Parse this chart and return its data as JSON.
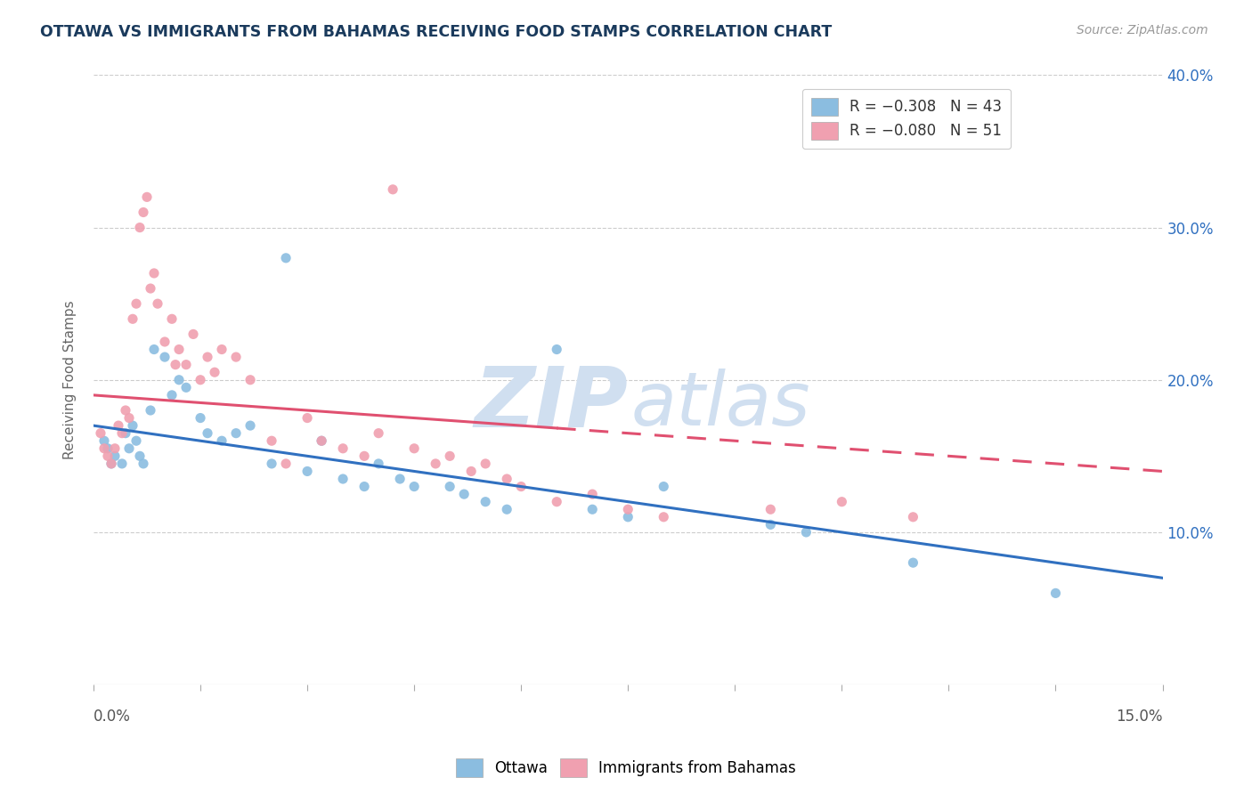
{
  "title": "OTTAWA VS IMMIGRANTS FROM BAHAMAS RECEIVING FOOD STAMPS CORRELATION CHART",
  "source": "Source: ZipAtlas.com",
  "ylabel": "Receiving Food Stamps",
  "xmin": 0.0,
  "xmax": 15.0,
  "ymin": 0.0,
  "ymax": 40.0,
  "ytick_vals": [
    10.0,
    20.0,
    30.0,
    40.0
  ],
  "ytick_labels": [
    "10.0%",
    "20.0%",
    "30.0%",
    "40.0%"
  ],
  "ottawa_color": "#8bbde0",
  "bahamas_color": "#f0a0b0",
  "ottawa_line_color": "#3070c0",
  "bahamas_line_color": "#e05070",
  "watermark_color": "#d0dff0",
  "ottawa_line_y0": 17.0,
  "ottawa_line_y1": 7.0,
  "bahamas_line_y0": 19.0,
  "bahamas_line_y1": 14.0,
  "bahamas_solid_x1": 6.5,
  "ottawa_scatter": [
    [
      0.15,
      16.0
    ],
    [
      0.2,
      15.5
    ],
    [
      0.25,
      14.5
    ],
    [
      0.3,
      15.0
    ],
    [
      0.4,
      14.5
    ],
    [
      0.45,
      16.5
    ],
    [
      0.5,
      15.5
    ],
    [
      0.55,
      17.0
    ],
    [
      0.6,
      16.0
    ],
    [
      0.65,
      15.0
    ],
    [
      0.7,
      14.5
    ],
    [
      0.8,
      18.0
    ],
    [
      0.85,
      22.0
    ],
    [
      1.0,
      21.5
    ],
    [
      1.1,
      19.0
    ],
    [
      1.2,
      20.0
    ],
    [
      1.3,
      19.5
    ],
    [
      1.5,
      17.5
    ],
    [
      1.6,
      16.5
    ],
    [
      1.8,
      16.0
    ],
    [
      2.0,
      16.5
    ],
    [
      2.2,
      17.0
    ],
    [
      2.5,
      14.5
    ],
    [
      2.7,
      28.0
    ],
    [
      3.0,
      14.0
    ],
    [
      3.2,
      16.0
    ],
    [
      3.5,
      13.5
    ],
    [
      3.8,
      13.0
    ],
    [
      4.0,
      14.5
    ],
    [
      4.3,
      13.5
    ],
    [
      4.5,
      13.0
    ],
    [
      5.0,
      13.0
    ],
    [
      5.2,
      12.5
    ],
    [
      5.5,
      12.0
    ],
    [
      5.8,
      11.5
    ],
    [
      6.5,
      22.0
    ],
    [
      7.0,
      11.5
    ],
    [
      7.5,
      11.0
    ],
    [
      8.0,
      13.0
    ],
    [
      9.5,
      10.5
    ],
    [
      10.0,
      10.0
    ],
    [
      11.5,
      8.0
    ],
    [
      13.5,
      6.0
    ]
  ],
  "bahamas_scatter": [
    [
      0.1,
      16.5
    ],
    [
      0.15,
      15.5
    ],
    [
      0.2,
      15.0
    ],
    [
      0.25,
      14.5
    ],
    [
      0.3,
      15.5
    ],
    [
      0.35,
      17.0
    ],
    [
      0.4,
      16.5
    ],
    [
      0.45,
      18.0
    ],
    [
      0.5,
      17.5
    ],
    [
      0.55,
      24.0
    ],
    [
      0.6,
      25.0
    ],
    [
      0.65,
      30.0
    ],
    [
      0.7,
      31.0
    ],
    [
      0.75,
      32.0
    ],
    [
      0.8,
      26.0
    ],
    [
      0.85,
      27.0
    ],
    [
      0.9,
      25.0
    ],
    [
      1.0,
      22.5
    ],
    [
      1.1,
      24.0
    ],
    [
      1.15,
      21.0
    ],
    [
      1.2,
      22.0
    ],
    [
      1.3,
      21.0
    ],
    [
      1.4,
      23.0
    ],
    [
      1.5,
      20.0
    ],
    [
      1.6,
      21.5
    ],
    [
      1.7,
      20.5
    ],
    [
      1.8,
      22.0
    ],
    [
      2.0,
      21.5
    ],
    [
      2.2,
      20.0
    ],
    [
      2.5,
      16.0
    ],
    [
      2.7,
      14.5
    ],
    [
      3.0,
      17.5
    ],
    [
      3.2,
      16.0
    ],
    [
      3.5,
      15.5
    ],
    [
      3.8,
      15.0
    ],
    [
      4.0,
      16.5
    ],
    [
      4.2,
      32.5
    ],
    [
      4.5,
      15.5
    ],
    [
      4.8,
      14.5
    ],
    [
      5.0,
      15.0
    ],
    [
      5.3,
      14.0
    ],
    [
      5.5,
      14.5
    ],
    [
      5.8,
      13.5
    ],
    [
      6.0,
      13.0
    ],
    [
      6.5,
      12.0
    ],
    [
      7.0,
      12.5
    ],
    [
      7.5,
      11.5
    ],
    [
      8.0,
      11.0
    ],
    [
      9.5,
      11.5
    ],
    [
      10.5,
      12.0
    ],
    [
      11.5,
      11.0
    ]
  ]
}
